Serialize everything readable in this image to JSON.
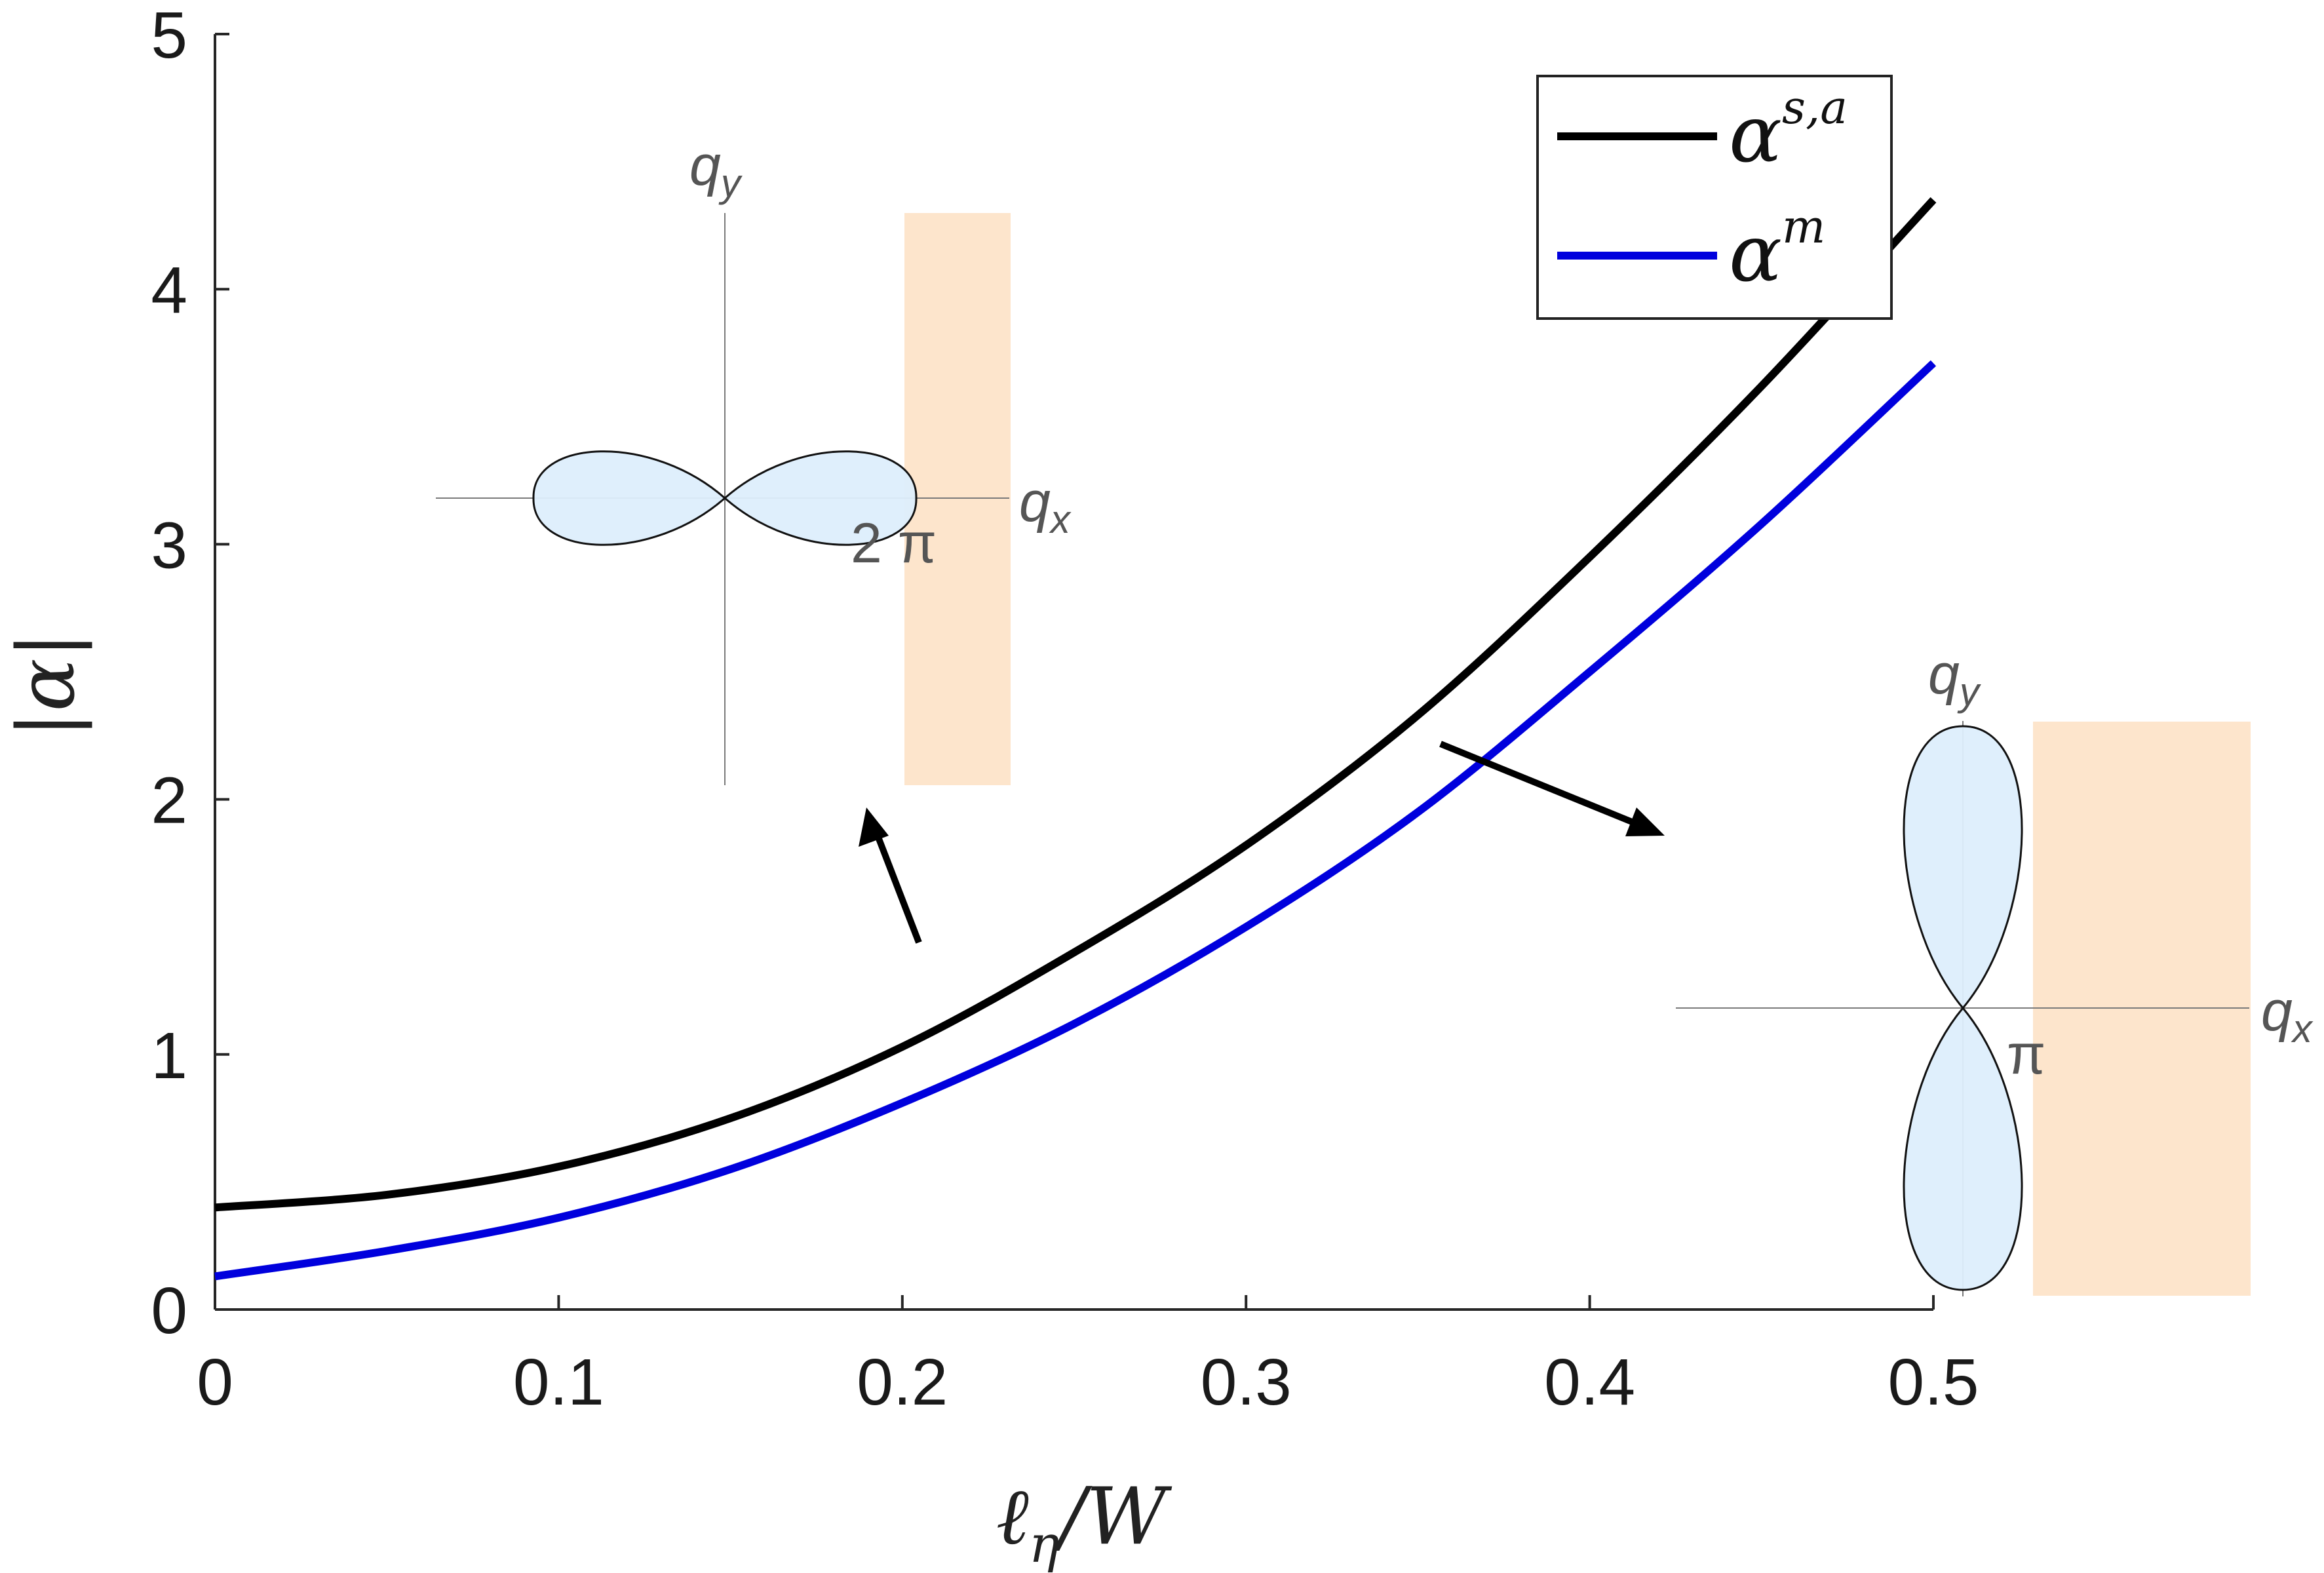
{
  "chart_data": {
    "type": "line",
    "title": "",
    "xlabel": "ℓη/W",
    "xlabel_main": "ℓ",
    "xlabel_sub": "η",
    "xlabel_rest": "/W",
    "ylabel": "|α|",
    "xlim": [
      0,
      0.5
    ],
    "ylim": [
      0,
      5
    ],
    "xticks": [
      0,
      0.1,
      0.2,
      0.3,
      0.4,
      0.5
    ],
    "xtick_labels": [
      "0",
      "0.1",
      "0.2",
      "0.3",
      "0.4",
      "0.5"
    ],
    "yticks": [
      0,
      1,
      2,
      3,
      4,
      5
    ],
    "ytick_labels": [
      "0",
      "1",
      "2",
      "3",
      "4",
      "5"
    ],
    "grid": false,
    "legend_position": "top-right",
    "series": [
      {
        "name": "α^{s,a}",
        "legend_base": "α",
        "legend_sup": "s,a",
        "color": "#000000",
        "x": [
          0,
          0.05,
          0.1,
          0.15,
          0.2,
          0.25,
          0.3,
          0.35,
          0.4,
          0.45,
          0.5
        ],
        "y": [
          0.4,
          0.45,
          0.56,
          0.75,
          1.03,
          1.4,
          1.82,
          2.33,
          2.95,
          3.62,
          4.35
        ]
      },
      {
        "name": "α^m",
        "legend_base": "α",
        "legend_sup": "m",
        "color": "#0000dd",
        "x": [
          0,
          0.05,
          0.1,
          0.15,
          0.2,
          0.25,
          0.3,
          0.35,
          0.4,
          0.45,
          0.5
        ],
        "y": [
          0.13,
          0.23,
          0.36,
          0.55,
          0.81,
          1.12,
          1.5,
          1.95,
          2.5,
          3.08,
          3.71
        ]
      }
    ],
    "insets": [
      {
        "orientation": "horizontal",
        "axis_x_label": "q",
        "axis_x_sub": "x",
        "axis_y_label": "q",
        "axis_y_sub": "y",
        "period_label": "2 π",
        "lobe_color": "#ddeefc",
        "strip_color": "#fde5cc"
      },
      {
        "orientation": "vertical",
        "axis_x_label": "q",
        "axis_x_sub": "x",
        "axis_y_label": "q",
        "axis_y_sub": "y",
        "period_label": "π",
        "lobe_color": "#ddeefc",
        "strip_color": "#fde5cc"
      }
    ]
  }
}
